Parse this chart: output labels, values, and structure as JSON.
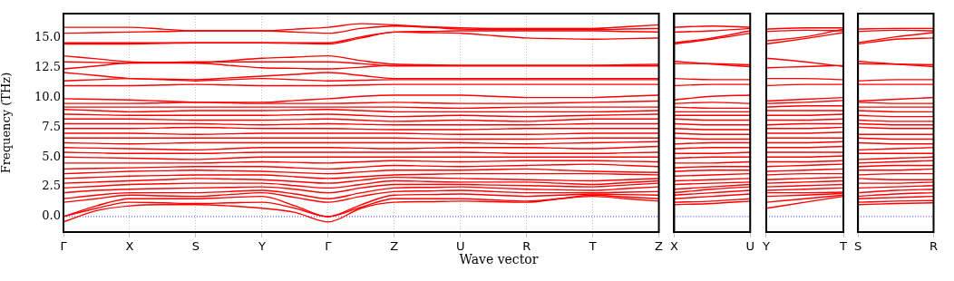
{
  "chart_data": [
    {
      "type": "line",
      "xlabel": "Wave vector",
      "ylabel": "Frequency (THz)",
      "grid": "x",
      "marker": "none",
      "line_style": "solid",
      "categories": [
        "Γ",
        null,
        "X",
        null,
        "S",
        null,
        "Y",
        null,
        "Γ",
        null,
        "Z",
        null,
        "U",
        null,
        "R",
        null,
        "T",
        null,
        "Z"
      ],
      "ylim": [
        -1.3,
        17.05
      ],
      "yticks": [
        {
          "value": 0,
          "label": "0.0"
        },
        {
          "value": 2.5,
          "label": "2.5"
        },
        {
          "value": 5,
          "label": "5.0"
        },
        {
          "value": 7.5,
          "label": "7.5"
        },
        {
          "value": 10,
          "label": "10.0"
        },
        {
          "value": 12.5,
          "label": "12.5"
        },
        {
          "value": 15,
          "label": "15.0"
        }
      ],
      "ref_lines": [
        {
          "axis": "y",
          "value": 0,
          "color": "#0000ff",
          "line_style": "dotted"
        }
      ],
      "series": [
        {
          "color": "#ff0000",
          "values": [
            -0.45,
            0.5,
            0.9,
            1.0,
            1.0,
            0.9,
            0.7,
            0.35,
            -0.45,
            0.7,
            1.2,
            1.25,
            1.3,
            1.25,
            1.2,
            1.5,
            1.7,
            1.5,
            1.3
          ]
        },
        {
          "color": "#ff0000",
          "values": [
            0,
            0.7,
            1.2,
            1.15,
            1.1,
            1.15,
            1.2,
            0.7,
            0,
            0.8,
            1.5,
            1.5,
            1.5,
            1.4,
            1.3,
            1.5,
            1.8,
            1.65,
            1.5
          ]
        },
        {
          "color": "#ff0000",
          "values": [
            0,
            0.9,
            1.5,
            1.5,
            1.5,
            1.6,
            1.7,
            0.9,
            0,
            1.0,
            1.8,
            1.85,
            1.9,
            1.8,
            1.7,
            1.8,
            1.9,
            1.85,
            1.8
          ]
        },
        {
          "color": "#ff0000",
          "values": [
            1.2,
            1.5,
            1.8,
            1.75,
            1.7,
            1.85,
            2.0,
            1.6,
            1.2,
            1.7,
            2.1,
            2.15,
            2.2,
            2.1,
            2.0,
            2.0,
            2.0,
            2.05,
            2.1
          ]
        },
        {
          "color": "#ff0000",
          "values": [
            1.5,
            1.8,
            2.0,
            2.0,
            2.0,
            2.1,
            2.2,
            1.9,
            1.5,
            2.0,
            2.4,
            2.45,
            2.5,
            2.4,
            2.3,
            2.25,
            2.2,
            2.35,
            2.5
          ]
        },
        {
          "color": "#ff0000",
          "values": [
            2.0,
            2.2,
            2.3,
            2.35,
            2.4,
            2.45,
            2.5,
            2.3,
            2.0,
            2.4,
            2.7,
            2.7,
            2.7,
            2.65,
            2.6,
            2.55,
            2.5,
            2.65,
            2.8
          ]
        },
        {
          "color": "#ff0000",
          "values": [
            2.4,
            2.55,
            2.7,
            2.75,
            2.8,
            2.8,
            2.8,
            2.6,
            2.4,
            2.7,
            3.0,
            2.95,
            2.9,
            2.9,
            2.9,
            2.8,
            2.7,
            2.85,
            3.0
          ]
        },
        {
          "color": "#ff0000",
          "values": [
            2.8,
            2.9,
            3.0,
            3.1,
            3.2,
            3.15,
            3.1,
            2.95,
            2.8,
            3.05,
            3.3,
            3.25,
            3.2,
            3.15,
            3.1,
            3.05,
            3.0,
            3.1,
            3.2
          ]
        },
        {
          "color": "#ff0000",
          "values": [
            3.2,
            3.3,
            3.4,
            3.45,
            3.5,
            3.5,
            3.5,
            3.35,
            3.2,
            3.35,
            3.5,
            3.55,
            3.6,
            3.6,
            3.6,
            3.6,
            3.6,
            3.55,
            3.5
          ]
        },
        {
          "color": "#ff0000",
          "values": [
            3.6,
            3.7,
            3.8,
            3.85,
            3.9,
            3.85,
            3.8,
            3.7,
            3.6,
            3.75,
            3.9,
            3.9,
            3.9,
            3.95,
            4.0,
            3.9,
            3.8,
            3.75,
            3.7
          ]
        },
        {
          "color": "#ff0000",
          "values": [
            4.0,
            4.05,
            4.1,
            4.15,
            4.2,
            4.2,
            4.2,
            4.1,
            4.0,
            4.15,
            4.3,
            4.25,
            4.2,
            4.25,
            4.3,
            4.35,
            4.4,
            4.3,
            4.2
          ]
        },
        {
          "color": "#ff0000",
          "values": [
            4.5,
            4.5,
            4.5,
            4.5,
            4.5,
            4.55,
            4.6,
            4.55,
            4.5,
            4.6,
            4.7,
            4.65,
            4.6,
            4.65,
            4.7,
            4.7,
            4.7,
            4.65,
            4.6
          ]
        },
        {
          "color": "#ff0000",
          "values": [
            5.0,
            4.95,
            4.9,
            4.85,
            4.8,
            4.9,
            5.0,
            5.0,
            5.0,
            5.0,
            5.0,
            5.0,
            5.0,
            5.0,
            5.0,
            5.0,
            5.0,
            5.0,
            5.0
          ]
        },
        {
          "color": "#ff0000",
          "values": [
            5.4,
            5.35,
            5.3,
            5.3,
            5.3,
            5.35,
            5.4,
            5.4,
            5.4,
            5.4,
            5.4,
            5.4,
            5.4,
            5.35,
            5.3,
            5.3,
            5.3,
            5.35,
            5.4
          ]
        },
        {
          "color": "#ff0000",
          "values": [
            5.8,
            5.75,
            5.7,
            5.65,
            5.6,
            5.7,
            5.8,
            5.8,
            5.8,
            5.75,
            5.7,
            5.75,
            5.8,
            5.8,
            5.8,
            5.75,
            5.7,
            5.8,
            5.9
          ]
        },
        {
          "color": "#ff0000",
          "values": [
            6.2,
            6.15,
            6.1,
            6.15,
            6.2,
            6.2,
            6.2,
            6.2,
            6.2,
            6.2,
            6.2,
            6.2,
            6.2,
            6.15,
            6.1,
            6.15,
            6.2,
            6.25,
            6.3
          ]
        },
        {
          "color": "#ff0000",
          "values": [
            6.6,
            6.6,
            6.6,
            6.6,
            6.6,
            6.6,
            6.6,
            6.6,
            6.6,
            6.6,
            6.6,
            6.55,
            6.5,
            6.5,
            6.5,
            6.55,
            6.6,
            6.6,
            6.6
          ]
        },
        {
          "color": "#ff0000",
          "values": [
            7.0,
            7.0,
            7.0,
            6.95,
            6.9,
            6.95,
            7.0,
            7.0,
            7.0,
            7.0,
            7.0,
            6.95,
            6.9,
            6.9,
            6.9,
            6.95,
            7.0,
            7.0,
            7.0
          ]
        },
        {
          "color": "#ff0000",
          "values": [
            7.4,
            7.4,
            7.4,
            7.45,
            7.5,
            7.45,
            7.4,
            7.4,
            7.4,
            7.35,
            7.3,
            7.3,
            7.3,
            7.35,
            7.4,
            7.4,
            7.4,
            7.4,
            7.4
          ]
        },
        {
          "color": "#ff0000",
          "values": [
            7.8,
            7.8,
            7.8,
            7.8,
            7.8,
            7.75,
            7.7,
            7.75,
            7.8,
            7.75,
            7.7,
            7.7,
            7.7,
            7.7,
            7.7,
            7.75,
            7.8,
            7.8,
            7.8
          ]
        },
        {
          "color": "#ff0000",
          "values": [
            8.2,
            8.2,
            8.2,
            8.15,
            8.1,
            8.1,
            8.1,
            8.15,
            8.2,
            8.1,
            8.0,
            8.05,
            8.1,
            8.05,
            8.0,
            8.1,
            8.2,
            8.2,
            8.2
          ]
        },
        {
          "color": "#ff0000",
          "values": [
            8.6,
            8.55,
            8.5,
            8.5,
            8.5,
            8.5,
            8.5,
            8.55,
            8.6,
            8.5,
            8.4,
            8.45,
            8.5,
            8.45,
            8.4,
            8.45,
            8.5,
            8.55,
            8.6
          ]
        },
        {
          "color": "#ff0000",
          "values": [
            9.0,
            8.9,
            8.8,
            8.85,
            8.9,
            8.9,
            8.9,
            8.95,
            9.0,
            8.9,
            8.8,
            8.8,
            8.8,
            8.8,
            8.8,
            8.8,
            8.8,
            8.85,
            8.9
          ]
        },
        {
          "color": "#ff0000",
          "values": [
            9.2,
            9.2,
            9.2,
            9.2,
            9.2,
            9.2,
            9.2,
            9.2,
            9.2,
            9.2,
            9.2,
            9.15,
            9.1,
            9.15,
            9.2,
            9.2,
            9.2,
            9.2,
            9.2
          ]
        },
        {
          "color": "#ff0000",
          "values": [
            9.5,
            9.5,
            9.5,
            9.55,
            9.6,
            9.55,
            9.5,
            9.5,
            9.5,
            9.55,
            9.6,
            9.55,
            9.5,
            9.5,
            9.5,
            9.55,
            9.6,
            9.65,
            9.7
          ]
        },
        {
          "color": "#ff0000",
          "values": [
            9.9,
            9.85,
            9.8,
            9.7,
            9.6,
            9.6,
            9.6,
            9.75,
            9.9,
            10.1,
            10.2,
            10.2,
            10.2,
            10.1,
            10.0,
            10.0,
            10.0,
            10.1,
            10.2
          ]
        },
        {
          "color": "#ff0000",
          "values": [
            11.0,
            11.0,
            11.0,
            11.05,
            11.1,
            11.05,
            11.0,
            11.0,
            11.0,
            11.05,
            11.1,
            11.1,
            11.1,
            11.1,
            11.1,
            11.1,
            11.1,
            11.1,
            11.1
          ]
        },
        {
          "color": "#ff0000",
          "values": [
            11.4,
            11.5,
            11.6,
            11.5,
            11.4,
            11.5,
            11.6,
            11.5,
            11.4,
            11.45,
            11.5,
            11.5,
            11.5,
            11.5,
            11.5,
            11.5,
            11.5,
            11.5,
            11.5
          ]
        },
        {
          "color": "#ff0000",
          "values": [
            12.1,
            11.85,
            11.6,
            11.55,
            11.5,
            11.65,
            11.8,
            11.95,
            12.1,
            11.85,
            11.6,
            11.6,
            11.6,
            11.6,
            11.6,
            11.6,
            11.6,
            11.6,
            11.6
          ]
        },
        {
          "color": "#ff0000",
          "values": [
            12.4,
            12.65,
            12.9,
            12.9,
            12.9,
            12.7,
            12.5,
            12.45,
            12.4,
            12.55,
            12.7,
            12.7,
            12.7,
            12.7,
            12.7,
            12.7,
            12.7,
            12.7,
            12.7
          ]
        },
        {
          "color": "#ff0000",
          "values": [
            13.0,
            12.95,
            12.9,
            12.95,
            13.0,
            13.0,
            13.0,
            13.0,
            13.0,
            12.85,
            12.65,
            12.65,
            12.65,
            12.65,
            12.65,
            12.65,
            12.65,
            12.65,
            12.65
          ]
        },
        {
          "color": "#ff0000",
          "values": [
            13.5,
            13.25,
            13.0,
            12.95,
            12.9,
            13.1,
            13.3,
            13.4,
            13.5,
            13.1,
            12.8,
            12.75,
            12.7,
            12.7,
            12.7,
            12.7,
            12.7,
            12.75,
            12.8
          ]
        },
        {
          "color": "#ff0000",
          "values": [
            14.5,
            14.5,
            14.5,
            14.55,
            14.6,
            14.6,
            14.6,
            14.55,
            14.5,
            15.0,
            15.5,
            15.45,
            15.4,
            15.2,
            15.0,
            14.95,
            14.9,
            14.95,
            15.0
          ]
        },
        {
          "color": "#ff0000",
          "values": [
            14.6,
            14.6,
            14.6,
            14.6,
            14.6,
            14.6,
            14.6,
            14.6,
            14.6,
            15.1,
            15.5,
            15.55,
            15.6,
            15.6,
            15.6,
            15.6,
            15.6,
            15.55,
            15.5
          ]
        },
        {
          "color": "#ff0000",
          "values": [
            15.4,
            15.45,
            15.5,
            15.55,
            15.6,
            15.6,
            15.6,
            15.5,
            15.4,
            15.8,
            16.0,
            15.9,
            15.75,
            15.7,
            15.7,
            15.7,
            15.7,
            15.75,
            15.8
          ]
        },
        {
          "color": "#ff0000",
          "values": [
            15.9,
            15.9,
            15.9,
            15.75,
            15.6,
            15.6,
            15.6,
            15.75,
            15.9,
            16.2,
            16.1,
            15.95,
            15.85,
            15.8,
            15.8,
            15.8,
            15.8,
            15.95,
            16.1
          ]
        }
      ]
    },
    {
      "type": "line",
      "marker": "none",
      "line_style": "solid",
      "tick_labels": "x",
      "categories": [
        "X",
        null,
        "U"
      ],
      "ylim": [
        -1.3,
        17.05
      ],
      "ref_lines": [
        {
          "axis": "y",
          "value": 0,
          "color": "#0000ff",
          "line_style": "dotted"
        }
      ],
      "series": [
        {
          "color": "#ff0000",
          "values": [
            1.0,
            1.1,
            1.3
          ]
        },
        {
          "color": "#ff0000",
          "values": [
            1.2,
            1.3,
            1.5
          ]
        },
        {
          "color": "#ff0000",
          "values": [
            1.5,
            1.7,
            1.9
          ]
        },
        {
          "color": "#ff0000",
          "values": [
            1.8,
            2.0,
            2.2
          ]
        },
        {
          "color": "#ff0000",
          "values": [
            2.0,
            2.3,
            2.5
          ]
        },
        {
          "color": "#ff0000",
          "values": [
            2.3,
            2.5,
            2.7
          ]
        },
        {
          "color": "#ff0000",
          "values": [
            2.7,
            2.8,
            2.9
          ]
        },
        {
          "color": "#ff0000",
          "values": [
            3.0,
            3.1,
            3.2
          ]
        },
        {
          "color": "#ff0000",
          "values": [
            3.4,
            3.5,
            3.6
          ]
        },
        {
          "color": "#ff0000",
          "values": [
            3.8,
            3.9,
            3.9
          ]
        },
        {
          "color": "#ff0000",
          "values": [
            4.1,
            4.2,
            4.2
          ]
        },
        {
          "color": "#ff0000",
          "values": [
            4.5,
            4.5,
            4.6
          ]
        },
        {
          "color": "#ff0000",
          "values": [
            4.9,
            5.0,
            5.0
          ]
        },
        {
          "color": "#ff0000",
          "values": [
            5.3,
            5.3,
            5.4
          ]
        },
        {
          "color": "#ff0000",
          "values": [
            5.7,
            5.8,
            5.8
          ]
        },
        {
          "color": "#ff0000",
          "values": [
            6.1,
            6.2,
            6.2
          ]
        },
        {
          "color": "#ff0000",
          "values": [
            6.6,
            6.5,
            6.5
          ]
        },
        {
          "color": "#ff0000",
          "values": [
            7.0,
            6.9,
            6.9
          ]
        },
        {
          "color": "#ff0000",
          "values": [
            7.4,
            7.3,
            7.3
          ]
        },
        {
          "color": "#ff0000",
          "values": [
            7.8,
            7.7,
            7.7
          ]
        },
        {
          "color": "#ff0000",
          "values": [
            8.2,
            8.1,
            8.1
          ]
        },
        {
          "color": "#ff0000",
          "values": [
            8.5,
            8.5,
            8.5
          ]
        },
        {
          "color": "#ff0000",
          "values": [
            8.8,
            8.8,
            8.8
          ]
        },
        {
          "color": "#ff0000",
          "values": [
            9.2,
            9.1,
            9.1
          ]
        },
        {
          "color": "#ff0000",
          "values": [
            9.5,
            9.6,
            9.5
          ]
        },
        {
          "color": "#ff0000",
          "values": [
            9.8,
            10.1,
            10.2
          ]
        },
        {
          "color": "#ff0000",
          "values": [
            11.0,
            11.1,
            11.1
          ]
        },
        {
          "color": "#ff0000",
          "values": [
            11.6,
            11.5,
            11.5
          ]
        },
        {
          "color": "#ff0000",
          "values": [
            12.85,
            12.85,
            12.75
          ]
        },
        {
          "color": "#ff0000",
          "values": [
            13.05,
            12.8,
            12.6
          ]
        },
        {
          "color": "#ff0000",
          "values": [
            14.5,
            14.9,
            15.4
          ]
        },
        {
          "color": "#ff0000",
          "values": [
            14.6,
            15.0,
            15.6
          ]
        },
        {
          "color": "#ff0000",
          "values": [
            15.5,
            15.6,
            15.8
          ]
        },
        {
          "color": "#ff0000",
          "values": [
            15.9,
            16.0,
            15.9
          ]
        }
      ]
    },
    {
      "type": "line",
      "marker": "none",
      "line_style": "solid",
      "tick_labels": "x",
      "categories": [
        "Y",
        null,
        "T"
      ],
      "ylim": [
        -1.3,
        17.05
      ],
      "ref_lines": [
        {
          "axis": "y",
          "value": 0,
          "color": "#0000ff",
          "line_style": "dotted"
        }
      ],
      "series": [
        {
          "color": "#ff0000",
          "values": [
            0.7,
            1.2,
            1.7
          ]
        },
        {
          "color": "#ff0000",
          "values": [
            1.2,
            1.5,
            1.8
          ]
        },
        {
          "color": "#ff0000",
          "values": [
            1.7,
            1.8,
            1.95
          ]
        },
        {
          "color": "#ff0000",
          "values": [
            2.0,
            2.0,
            2.05
          ]
        },
        {
          "color": "#ff0000",
          "values": [
            2.2,
            2.3,
            2.4
          ]
        },
        {
          "color": "#ff0000",
          "values": [
            2.5,
            2.6,
            2.7
          ]
        },
        {
          "color": "#ff0000",
          "values": [
            2.8,
            2.9,
            3.0
          ]
        },
        {
          "color": "#ff0000",
          "values": [
            3.1,
            3.2,
            3.3
          ]
        },
        {
          "color": "#ff0000",
          "values": [
            3.5,
            3.6,
            3.6
          ]
        },
        {
          "color": "#ff0000",
          "values": [
            3.8,
            3.9,
            4.0
          ]
        },
        {
          "color": "#ff0000",
          "values": [
            4.2,
            4.3,
            4.4
          ]
        },
        {
          "color": "#ff0000",
          "values": [
            4.6,
            4.6,
            4.7
          ]
        },
        {
          "color": "#ff0000",
          "values": [
            5.0,
            5.0,
            5.1
          ]
        },
        {
          "color": "#ff0000",
          "values": [
            5.4,
            5.4,
            5.4
          ]
        },
        {
          "color": "#ff0000",
          "values": [
            5.8,
            5.8,
            5.9
          ]
        },
        {
          "color": "#ff0000",
          "values": [
            6.2,
            6.2,
            6.3
          ]
        },
        {
          "color": "#ff0000",
          "values": [
            6.6,
            6.6,
            6.6
          ]
        },
        {
          "color": "#ff0000",
          "values": [
            7.0,
            7.0,
            7.1
          ]
        },
        {
          "color": "#ff0000",
          "values": [
            7.4,
            7.4,
            7.5
          ]
        },
        {
          "color": "#ff0000",
          "values": [
            7.7,
            7.8,
            7.8
          ]
        },
        {
          "color": "#ff0000",
          "values": [
            8.1,
            8.1,
            8.2
          ]
        },
        {
          "color": "#ff0000",
          "values": [
            8.5,
            8.5,
            8.6
          ]
        },
        {
          "color": "#ff0000",
          "values": [
            8.9,
            8.9,
            8.9
          ]
        },
        {
          "color": "#ff0000",
          "values": [
            9.2,
            9.3,
            9.3
          ]
        },
        {
          "color": "#ff0000",
          "values": [
            9.5,
            9.6,
            9.75
          ]
        },
        {
          "color": "#ff0000",
          "values": [
            9.7,
            9.85,
            10.0
          ]
        },
        {
          "color": "#ff0000",
          "values": [
            11.0,
            11.1,
            11.1
          ]
        },
        {
          "color": "#ff0000",
          "values": [
            11.6,
            11.6,
            11.5
          ]
        },
        {
          "color": "#ff0000",
          "values": [
            12.5,
            12.6,
            12.7
          ]
        },
        {
          "color": "#ff0000",
          "values": [
            13.3,
            13.0,
            12.6
          ]
        },
        {
          "color": "#ff0000",
          "values": [
            14.5,
            14.95,
            15.45
          ]
        },
        {
          "color": "#ff0000",
          "values": [
            14.75,
            15.1,
            15.75
          ]
        },
        {
          "color": "#ff0000",
          "values": [
            15.55,
            15.65,
            15.6
          ]
        },
        {
          "color": "#ff0000",
          "values": [
            15.75,
            15.85,
            15.85
          ]
        }
      ]
    },
    {
      "type": "line",
      "marker": "none",
      "line_style": "solid",
      "tick_labels": "x",
      "categories": [
        "S",
        null,
        "R"
      ],
      "ylim": [
        -1.3,
        17.05
      ],
      "ref_lines": [
        {
          "axis": "y",
          "value": 0,
          "color": "#0000ff",
          "line_style": "dotted"
        }
      ],
      "series": [
        {
          "color": "#ff0000",
          "values": [
            1.0,
            1.1,
            1.15
          ]
        },
        {
          "color": "#ff0000",
          "values": [
            1.2,
            1.3,
            1.35
          ]
        },
        {
          "color": "#ff0000",
          "values": [
            1.5,
            1.6,
            1.7
          ]
        },
        {
          "color": "#ff0000",
          "values": [
            1.7,
            1.9,
            2.0
          ]
        },
        {
          "color": "#ff0000",
          "values": [
            2.0,
            2.2,
            2.3
          ]
        },
        {
          "color": "#ff0000",
          "values": [
            2.4,
            2.5,
            2.6
          ]
        },
        {
          "color": "#ff0000",
          "values": [
            2.8,
            2.8,
            2.9
          ]
        },
        {
          "color": "#ff0000",
          "values": [
            3.2,
            3.1,
            3.1
          ]
        },
        {
          "color": "#ff0000",
          "values": [
            3.5,
            3.6,
            3.6
          ]
        },
        {
          "color": "#ff0000",
          "values": [
            3.9,
            3.9,
            4.0
          ]
        },
        {
          "color": "#ff0000",
          "values": [
            4.2,
            4.3,
            4.3
          ]
        },
        {
          "color": "#ff0000",
          "values": [
            4.5,
            4.6,
            4.7
          ]
        },
        {
          "color": "#ff0000",
          "values": [
            4.8,
            4.9,
            5.0
          ]
        },
        {
          "color": "#ff0000",
          "values": [
            5.3,
            5.3,
            5.3
          ]
        },
        {
          "color": "#ff0000",
          "values": [
            5.6,
            5.7,
            5.8
          ]
        },
        {
          "color": "#ff0000",
          "values": [
            6.2,
            6.1,
            6.1
          ]
        },
        {
          "color": "#ff0000",
          "values": [
            6.6,
            6.5,
            6.5
          ]
        },
        {
          "color": "#ff0000",
          "values": [
            6.9,
            6.9,
            6.9
          ]
        },
        {
          "color": "#ff0000",
          "values": [
            7.5,
            7.4,
            7.4
          ]
        },
        {
          "color": "#ff0000",
          "values": [
            7.8,
            7.7,
            7.7
          ]
        },
        {
          "color": "#ff0000",
          "values": [
            8.1,
            8.0,
            8.0
          ]
        },
        {
          "color": "#ff0000",
          "values": [
            8.5,
            8.4,
            8.4
          ]
        },
        {
          "color": "#ff0000",
          "values": [
            8.9,
            8.8,
            8.8
          ]
        },
        {
          "color": "#ff0000",
          "values": [
            9.2,
            9.2,
            9.2
          ]
        },
        {
          "color": "#ff0000",
          "values": [
            9.6,
            9.5,
            9.5
          ]
        },
        {
          "color": "#ff0000",
          "values": [
            9.7,
            9.85,
            10.0
          ]
        },
        {
          "color": "#ff0000",
          "values": [
            11.1,
            11.1,
            11.1
          ]
        },
        {
          "color": "#ff0000",
          "values": [
            11.4,
            11.5,
            11.5
          ]
        },
        {
          "color": "#ff0000",
          "values": [
            12.85,
            12.8,
            12.75
          ]
        },
        {
          "color": "#ff0000",
          "values": [
            13.05,
            12.8,
            12.6
          ]
        },
        {
          "color": "#ff0000",
          "values": [
            14.5,
            14.9,
            15.0
          ]
        },
        {
          "color": "#ff0000",
          "values": [
            14.6,
            15.1,
            15.45
          ]
        },
        {
          "color": "#ff0000",
          "values": [
            15.55,
            15.65,
            15.6
          ]
        },
        {
          "color": "#ff0000",
          "values": [
            15.75,
            15.8,
            15.8
          ]
        }
      ]
    }
  ]
}
